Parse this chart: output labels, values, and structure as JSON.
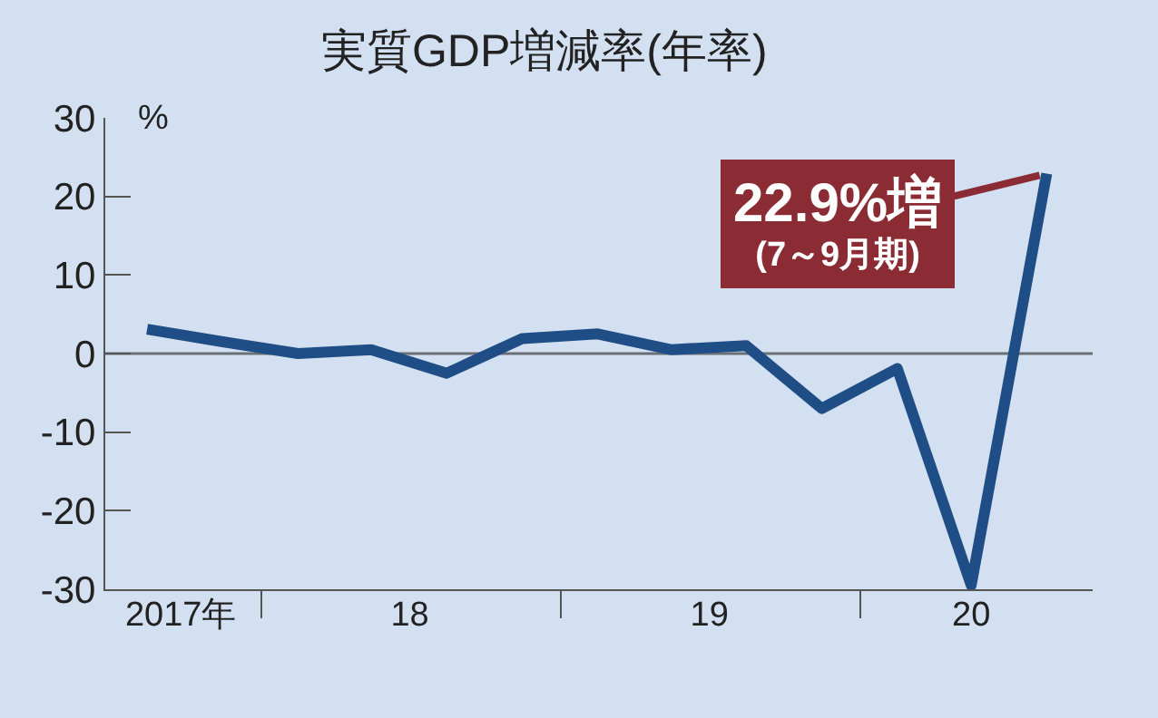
{
  "chart_data": {
    "type": "line",
    "title": "実質GDP増減率(年率)",
    "ylabel": "%",
    "x": [
      "2017-08-15",
      "2017-11-15",
      "2018-02-15",
      "2018-05-15",
      "2018-08-15",
      "2018-11-15",
      "2019-02-15",
      "2019-05-15",
      "2019-08-15",
      "2019-11-15",
      "2020-02-15",
      "2020-05-15",
      "2020-08-15"
    ],
    "series": [
      {
        "color": "#1f4e86",
        "values": [
          3.1,
          1.5,
          0.0,
          0.5,
          -2.5,
          1.9,
          2.5,
          0.5,
          1.0,
          -7.0,
          -1.9,
          -29.5,
          22.9
        ]
      }
    ],
    "xlim": [
      "2017-06-25",
      "2020-10-10"
    ],
    "xticks": [
      {
        "value": "2018-01-01",
        "label": null
      },
      {
        "value": "2019-01-01",
        "label": null
      },
      {
        "value": "2020-01-01",
        "label": null
      },
      {
        "value": "2017-09-25",
        "label": "2017年"
      },
      {
        "value": "2018-07-01",
        "label": "18"
      },
      {
        "value": "2019-07-01",
        "label": "19"
      },
      {
        "value": "2020-05-15",
        "label": "20"
      }
    ],
    "ylim": [
      -30,
      30
    ],
    "yticks": [
      -30,
      -20,
      -10,
      0,
      10,
      20,
      30
    ],
    "ref_lines": [
      {
        "axis": "y",
        "value": 0,
        "label": null,
        "color": "#6b7077"
      }
    ],
    "annotations": [
      {
        "text": "22.9%増\n(7～9月期)",
        "x": "2020-08-15",
        "y": 22.9
      }
    ],
    "marker": "none",
    "line_style": "solid"
  }
}
